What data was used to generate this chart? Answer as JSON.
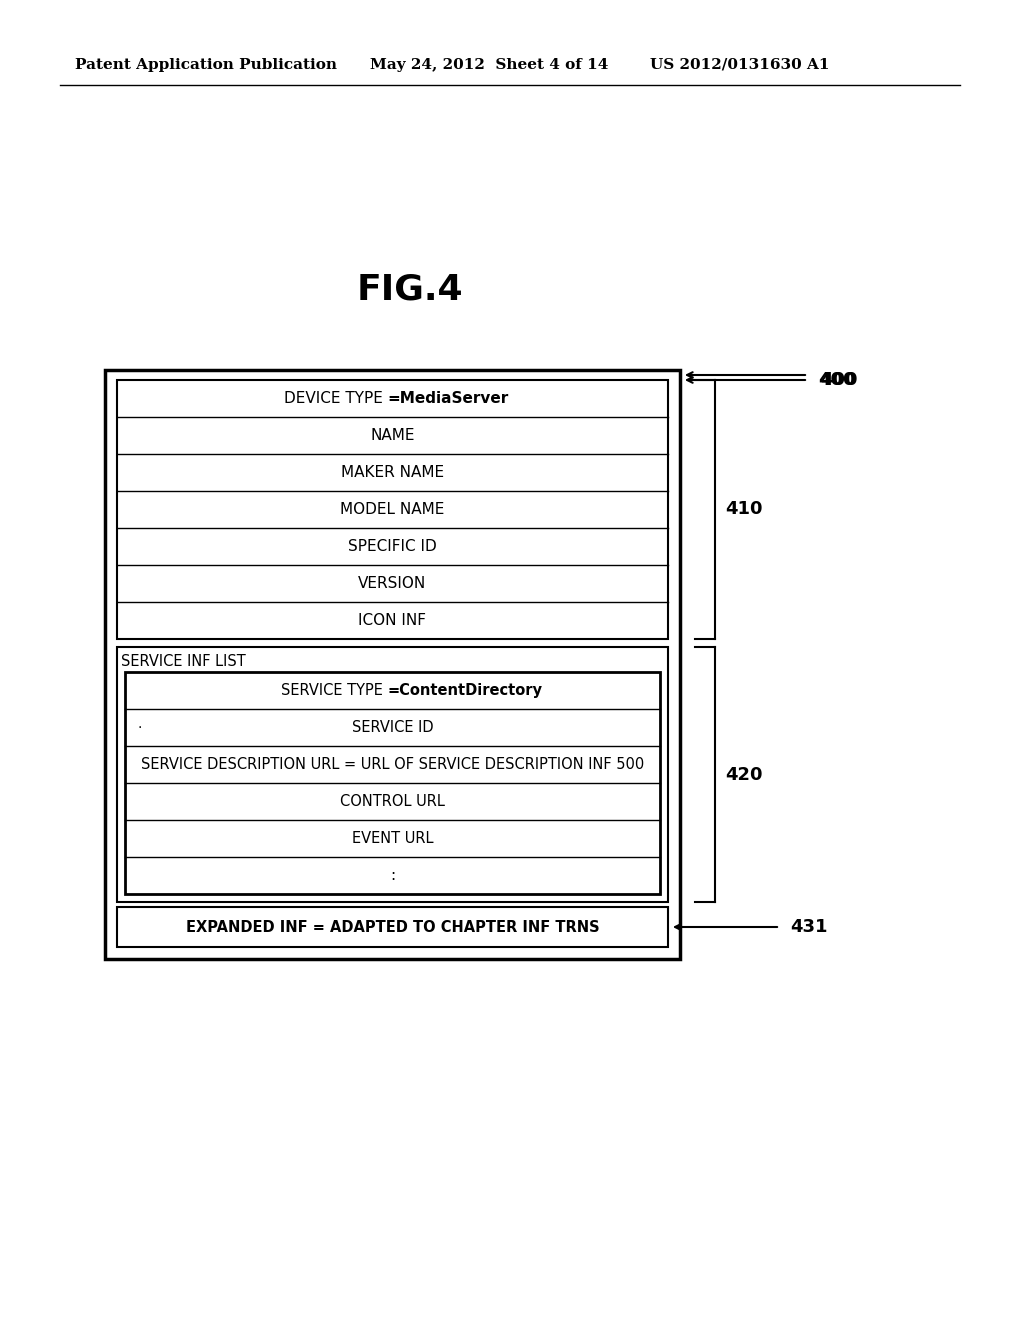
{
  "title": "FIG.4",
  "header_left": "Patent Application Publication",
  "header_mid": "May 24, 2012  Sheet 4 of 14",
  "header_right": "US 2012/0131630 A1",
  "outer_box_label": "400",
  "group410_label": "410",
  "group420_label": "420",
  "group431_label": "431",
  "rows_top": [
    "DEVICE TYPE =MediaServer",
    "NAME",
    "MAKER NAME",
    "MODEL NAME",
    "SPECIFIC ID",
    "VERSION",
    "ICON INF"
  ],
  "device_type_bold_part": "=MediaServer",
  "service_inf_list_label": "SERVICE INF LIST",
  "inner_box_rows": [
    "SERVICE TYPE =ContentDirectory",
    "SERVICE ID",
    "SERVICE DESCRIPTION URL = URL OF SERVICE DESCRIPTION INF 500",
    "CONTROL URL",
    "EVENT URL",
    ":"
  ],
  "service_type_bold_part": "=ContentDirectory",
  "expanded_inf_row": "EXPANDED INF = ADAPTED TO CHAPTER INF TRNS",
  "bg_color": "#ffffff",
  "box_color": "#000000",
  "text_color": "#000000"
}
